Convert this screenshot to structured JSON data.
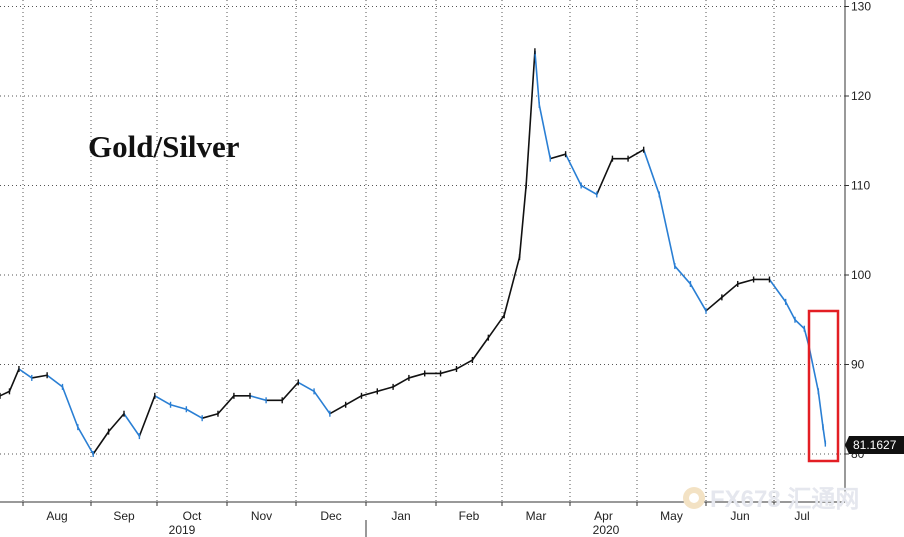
{
  "chart_data": {
    "type": "line",
    "title": "Gold/Silver",
    "ylim": [
      75,
      131
    ],
    "y_ticks": [
      80,
      90,
      100,
      110,
      120,
      130
    ],
    "x_ticks": [
      "Aug",
      "Sep",
      "Oct",
      "Nov",
      "Dec",
      "Jan",
      "Feb",
      "Mar",
      "Apr",
      "May",
      "Jun",
      "Jul"
    ],
    "years": [
      "2019",
      "2020"
    ],
    "grid": true,
    "last_value_label": "81.1627",
    "highlight_box": true,
    "colors": {
      "up": "#111111",
      "down": "#2a7fd4",
      "highlight": "#e31e24",
      "label_bg": "#111111"
    },
    "series": [
      {
        "x": [
          "2019-07-15",
          "2019-07-22",
          "2019-07-29",
          "2019-08-05",
          "2019-08-12",
          "2019-08-19",
          "2019-08-26",
          "2019-09-02",
          "2019-09-09",
          "2019-09-16",
          "2019-09-23",
          "2019-09-30",
          "2019-10-07",
          "2019-10-14",
          "2019-10-21",
          "2019-10-28",
          "2019-11-04",
          "2019-11-11",
          "2019-11-18",
          "2019-11-25",
          "2019-12-02",
          "2019-12-09",
          "2019-12-16",
          "2019-12-23",
          "2019-12-30",
          "2020-01-06",
          "2020-01-13",
          "2020-01-20",
          "2020-01-27",
          "2020-02-03",
          "2020-02-10",
          "2020-02-17",
          "2020-02-24",
          "2020-03-02",
          "2020-03-09",
          "2020-03-12",
          "2020-03-16",
          "2020-03-18",
          "2020-03-23",
          "2020-03-30",
          "2020-04-06",
          "2020-04-13",
          "2020-04-20",
          "2020-04-27",
          "2020-05-04",
          "2020-05-11",
          "2020-05-18",
          "2020-05-25",
          "2020-06-01",
          "2020-06-08",
          "2020-06-15",
          "2020-06-22",
          "2020-06-29",
          "2020-07-06",
          "2020-07-10",
          "2020-07-14",
          "2020-07-16",
          "2020-07-20",
          "2020-07-22",
          "2020-07-23"
        ],
        "values": [
          86.5,
          87.0,
          89.5,
          88.5,
          88.8,
          87.5,
          83.0,
          80.0,
          82.5,
          84.5,
          82.0,
          86.5,
          85.5,
          85.0,
          84.0,
          84.5,
          86.5,
          86.5,
          86.0,
          86.0,
          88.0,
          87.0,
          84.5,
          85.5,
          86.5,
          87.0,
          87.5,
          88.5,
          89.0,
          89.0,
          89.5,
          90.5,
          93.0,
          95.5,
          102.0,
          110.0,
          125.0,
          119.0,
          113.0,
          113.5,
          110.0,
          109.0,
          113.0,
          113.0,
          114.0,
          109.0,
          101.0,
          99.0,
          96.0,
          97.5,
          99.0,
          99.5,
          99.5,
          97.0,
          95.0,
          94.0,
          92.0,
          87.0,
          83.0,
          81.16
        ]
      }
    ]
  },
  "watermark": "FX678 汇通网"
}
